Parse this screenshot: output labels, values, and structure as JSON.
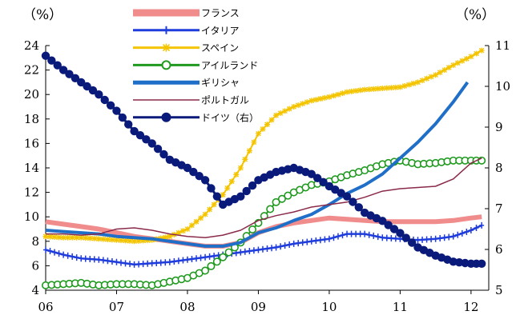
{
  "chart_data": {
    "type": "line",
    "left_unit": "（%）",
    "right_unit": "（%）",
    "x_ticks": [
      "06",
      "07",
      "08",
      "09",
      "10",
      "11",
      "12"
    ],
    "x_range": [
      2006.0,
      2012.25
    ],
    "ylim_left": [
      4,
      24
    ],
    "ylim_right": [
      5,
      11
    ],
    "y_ticks_left": [
      4,
      6,
      8,
      10,
      12,
      14,
      16,
      18,
      20,
      22,
      24
    ],
    "y_ticks_right": [
      5,
      6,
      7,
      8,
      9,
      10,
      11
    ],
    "grid": false,
    "legend_position": "top-center",
    "series": [
      {
        "name": "フランス",
        "axis": "left",
        "color": "#f08c8c",
        "style": "thick",
        "x": [
          2006.0,
          2006.25,
          2006.5,
          2006.75,
          2007.0,
          2007.25,
          2007.5,
          2007.75,
          2008.0,
          2008.25,
          2008.5,
          2008.75,
          2009.0,
          2009.25,
          2009.5,
          2009.75,
          2010.0,
          2010.25,
          2010.5,
          2010.75,
          2011.0,
          2011.25,
          2011.5,
          2011.75,
          2012.0,
          2012.15
        ],
        "values": [
          9.6,
          9.4,
          9.2,
          9.0,
          8.7,
          8.4,
          8.2,
          8.0,
          7.8,
          7.6,
          7.6,
          7.9,
          8.7,
          9.2,
          9.5,
          9.7,
          9.9,
          9.8,
          9.7,
          9.6,
          9.6,
          9.6,
          9.6,
          9.7,
          9.9,
          10.0
        ]
      },
      {
        "name": "イタリア",
        "axis": "left",
        "color": "#1f3cdc",
        "style": "plus",
        "x": [
          2006.0,
          2006.25,
          2006.5,
          2006.75,
          2007.0,
          2007.25,
          2007.5,
          2007.75,
          2008.0,
          2008.25,
          2008.5,
          2008.75,
          2009.0,
          2009.25,
          2009.5,
          2009.75,
          2010.0,
          2010.25,
          2010.5,
          2010.75,
          2011.0,
          2011.25,
          2011.5,
          2011.75,
          2012.0,
          2012.15
        ],
        "values": [
          7.3,
          6.9,
          6.6,
          6.5,
          6.3,
          6.1,
          6.2,
          6.3,
          6.5,
          6.7,
          6.9,
          7.1,
          7.3,
          7.5,
          7.8,
          8.0,
          8.2,
          8.6,
          8.6,
          8.3,
          8.2,
          8.1,
          8.2,
          8.4,
          8.9,
          9.3
        ]
      },
      {
        "name": "スペイン",
        "axis": "left",
        "color": "#f5c400",
        "style": "star",
        "x": [
          2006.0,
          2006.25,
          2006.5,
          2006.75,
          2007.0,
          2007.25,
          2007.5,
          2007.75,
          2008.0,
          2008.25,
          2008.5,
          2008.75,
          2009.0,
          2009.25,
          2009.5,
          2009.75,
          2010.0,
          2010.25,
          2010.5,
          2010.75,
          2011.0,
          2011.25,
          2011.5,
          2011.75,
          2012.0,
          2012.15
        ],
        "values": [
          8.4,
          8.3,
          8.3,
          8.2,
          8.1,
          8.0,
          8.1,
          8.4,
          9.0,
          10.2,
          11.8,
          14.0,
          16.8,
          18.3,
          19.0,
          19.5,
          19.8,
          20.2,
          20.4,
          20.5,
          20.6,
          21.0,
          21.6,
          22.4,
          23.1,
          23.6
        ]
      },
      {
        "name": "アイルランド",
        "axis": "left",
        "color": "#1f9a1f",
        "style": "circle-open",
        "x": [
          2006.0,
          2006.25,
          2006.5,
          2006.75,
          2007.0,
          2007.25,
          2007.5,
          2007.75,
          2008.0,
          2008.25,
          2008.5,
          2008.75,
          2009.0,
          2009.25,
          2009.5,
          2009.75,
          2010.0,
          2010.25,
          2010.5,
          2010.75,
          2011.0,
          2011.25,
          2011.5,
          2011.75,
          2012.0,
          2012.15
        ],
        "values": [
          4.4,
          4.5,
          4.6,
          4.4,
          4.5,
          4.5,
          4.4,
          4.7,
          5.0,
          5.6,
          6.7,
          7.9,
          9.5,
          11.2,
          12.0,
          12.6,
          12.9,
          13.4,
          13.8,
          14.3,
          14.6,
          14.3,
          14.4,
          14.6,
          14.6,
          14.6
        ]
      },
      {
        "name": "ギリシャ",
        "axis": "left",
        "color": "#1f6fc8",
        "style": "thick",
        "x": [
          2006.0,
          2006.25,
          2006.5,
          2006.75,
          2007.0,
          2007.25,
          2007.5,
          2007.75,
          2008.0,
          2008.25,
          2008.5,
          2008.75,
          2009.0,
          2009.25,
          2009.5,
          2009.75,
          2010.0,
          2010.25,
          2010.5,
          2010.75,
          2011.0,
          2011.25,
          2011.5,
          2011.75,
          2011.95
        ],
        "values": [
          8.9,
          8.8,
          8.7,
          8.6,
          8.4,
          8.3,
          8.2,
          8.0,
          7.8,
          7.6,
          7.6,
          7.9,
          8.7,
          9.1,
          9.7,
          10.2,
          11.0,
          11.9,
          12.6,
          13.5,
          14.8,
          16.1,
          17.6,
          19.4,
          21.0
        ]
      },
      {
        "name": "ポルトガル",
        "axis": "left",
        "color": "#8a2a4a",
        "style": "line",
        "x": [
          2006.0,
          2006.25,
          2006.5,
          2006.75,
          2007.0,
          2007.25,
          2007.5,
          2007.75,
          2008.0,
          2008.25,
          2008.5,
          2008.75,
          2009.0,
          2009.25,
          2009.5,
          2009.75,
          2010.0,
          2010.25,
          2010.5,
          2010.75,
          2011.0,
          2011.25,
          2011.5,
          2011.75,
          2012.0,
          2012.15
        ],
        "values": [
          8.6,
          8.6,
          8.5,
          8.6,
          9.0,
          9.1,
          8.9,
          8.6,
          8.4,
          8.3,
          8.5,
          8.9,
          9.7,
          10.1,
          10.4,
          10.8,
          11.0,
          11.2,
          11.6,
          12.1,
          12.3,
          12.4,
          12.5,
          13.1,
          14.4,
          14.8
        ]
      },
      {
        "name": "ドイツ（右）",
        "axis": "right",
        "color": "#0a1a7a",
        "style": "circle-filled",
        "x": [
          2006.0,
          2006.25,
          2006.5,
          2006.75,
          2007.0,
          2007.25,
          2007.5,
          2007.75,
          2008.0,
          2008.25,
          2008.5,
          2008.75,
          2009.0,
          2009.25,
          2009.5,
          2009.75,
          2010.0,
          2010.25,
          2010.5,
          2010.75,
          2011.0,
          2011.25,
          2011.5,
          2011.75,
          2012.0,
          2012.15
        ],
        "values": [
          10.75,
          10.4,
          10.1,
          9.8,
          9.4,
          8.9,
          8.6,
          8.2,
          8.0,
          7.7,
          7.1,
          7.3,
          7.7,
          7.9,
          8.0,
          7.85,
          7.55,
          7.3,
          6.9,
          6.7,
          6.4,
          6.05,
          5.85,
          5.7,
          5.65,
          5.65
        ]
      }
    ]
  }
}
